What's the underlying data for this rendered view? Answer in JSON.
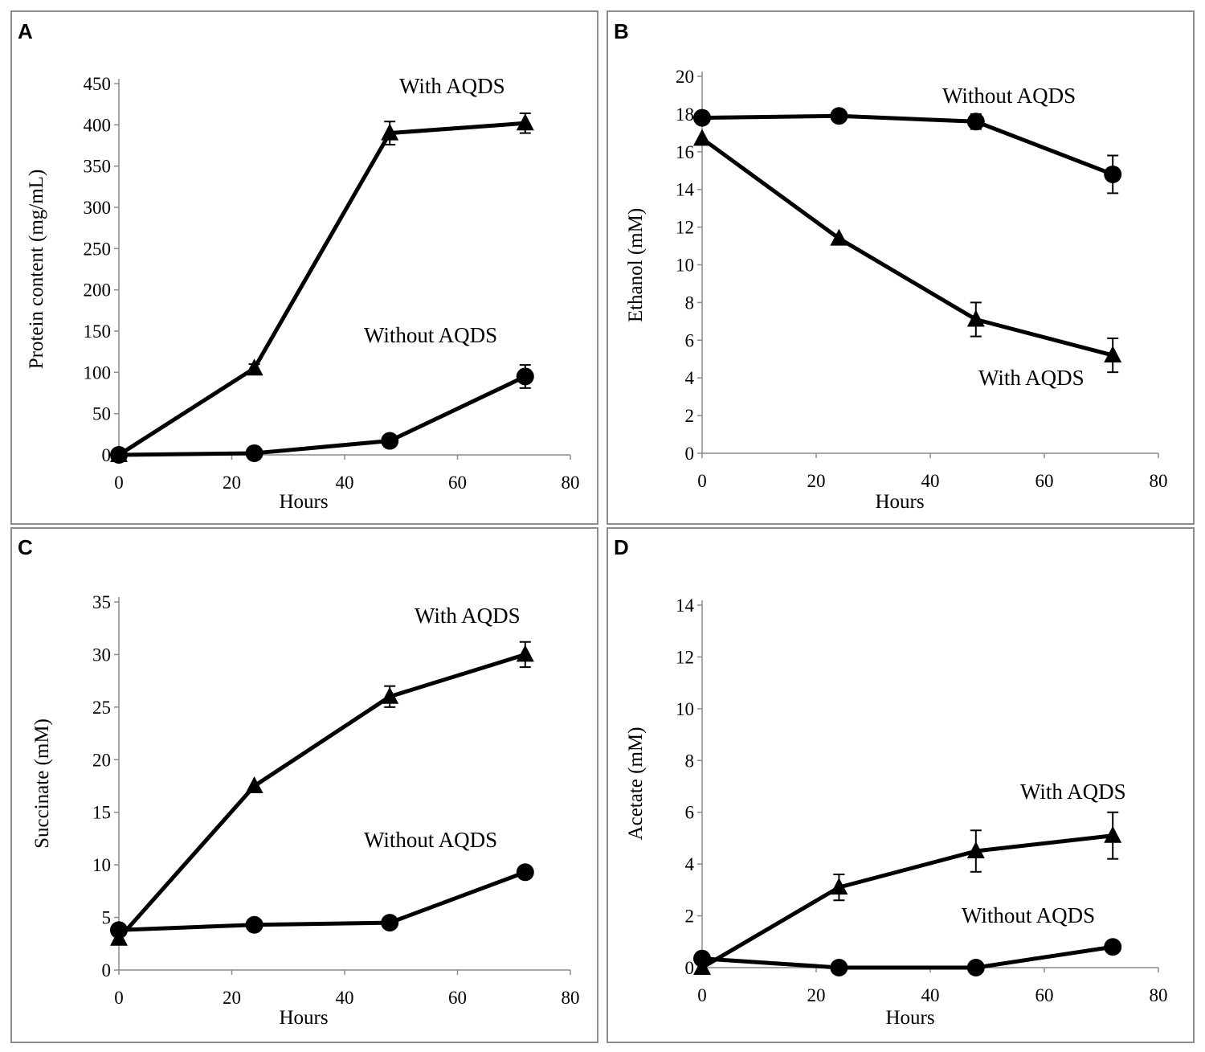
{
  "chart_data": [
    {
      "panel": "A",
      "type": "line",
      "xlabel": "Hours",
      "ylabel": "Protein content (mg/mL)",
      "xlim": [
        0,
        80
      ],
      "xticks": [
        0,
        20,
        40,
        60,
        80
      ],
      "ylim": [
        0,
        450
      ],
      "yticks": [
        0,
        50,
        100,
        150,
        200,
        250,
        300,
        350,
        400,
        450
      ],
      "series": [
        {
          "name": "With AQDS",
          "marker": "triangle",
          "x": [
            0,
            24,
            48,
            72
          ],
          "y": [
            0,
            105,
            390,
            402
          ],
          "err": [
            0,
            5,
            14,
            12
          ]
        },
        {
          "name": "Without AQDS",
          "marker": "circle",
          "x": [
            0,
            24,
            48,
            72
          ],
          "y": [
            0,
            2,
            17,
            95
          ],
          "err": [
            0,
            0,
            0,
            14
          ]
        }
      ]
    },
    {
      "panel": "B",
      "type": "line",
      "xlabel": "Hours",
      "ylabel": "Ethanol (mM)",
      "xlim": [
        0,
        80
      ],
      "xticks": [
        0,
        20,
        40,
        60,
        80
      ],
      "ylim": [
        0,
        20
      ],
      "yticks": [
        0,
        2,
        4,
        6,
        8,
        10,
        12,
        14,
        16,
        18,
        20
      ],
      "series": [
        {
          "name": "Without AQDS",
          "marker": "circle",
          "x": [
            0,
            24,
            48,
            72
          ],
          "y": [
            17.8,
            17.9,
            17.6,
            14.8
          ],
          "err": [
            0,
            0,
            0.4,
            1.0
          ]
        },
        {
          "name": "With AQDS",
          "marker": "triangle",
          "x": [
            0,
            24,
            48,
            72
          ],
          "y": [
            16.7,
            11.4,
            7.1,
            5.2
          ],
          "err": [
            0,
            0,
            0.9,
            0.9
          ]
        }
      ]
    },
    {
      "panel": "C",
      "type": "line",
      "xlabel": "Hours",
      "ylabel": "Succinate (mM)",
      "xlim": [
        0,
        80
      ],
      "xticks": [
        0,
        20,
        40,
        60,
        80
      ],
      "ylim": [
        0,
        35
      ],
      "yticks": [
        0,
        5,
        10,
        15,
        20,
        25,
        30,
        35
      ],
      "series": [
        {
          "name": "With AQDS",
          "marker": "triangle",
          "x": [
            0,
            24,
            48,
            72
          ],
          "y": [
            3.0,
            17.5,
            26.0,
            30.0
          ],
          "err": [
            0,
            0,
            1.0,
            1.2
          ]
        },
        {
          "name": "Without AQDS",
          "marker": "circle",
          "x": [
            0,
            24,
            48,
            72
          ],
          "y": [
            3.8,
            4.3,
            4.5,
            9.3
          ],
          "err": [
            0,
            0,
            0,
            0.5
          ]
        }
      ]
    },
    {
      "panel": "D",
      "type": "line",
      "xlabel": "Hours",
      "ylabel": "Acetate (mM)",
      "xlim": [
        0,
        80
      ],
      "xticks": [
        0,
        20,
        40,
        60,
        80
      ],
      "ylim": [
        0,
        14
      ],
      "yticks": [
        0,
        2,
        4,
        6,
        8,
        10,
        12,
        14
      ],
      "series": [
        {
          "name": "With AQDS",
          "marker": "triangle",
          "x": [
            0,
            24,
            48,
            72
          ],
          "y": [
            0,
            3.1,
            4.5,
            5.1
          ],
          "err": [
            0,
            0.5,
            0.8,
            0.9
          ]
        },
        {
          "name": "Without AQDS",
          "marker": "circle",
          "x": [
            0,
            24,
            48,
            72
          ],
          "y": [
            0.35,
            0,
            0,
            0.8
          ],
          "err": [
            0,
            0,
            0,
            0
          ]
        }
      ]
    }
  ]
}
